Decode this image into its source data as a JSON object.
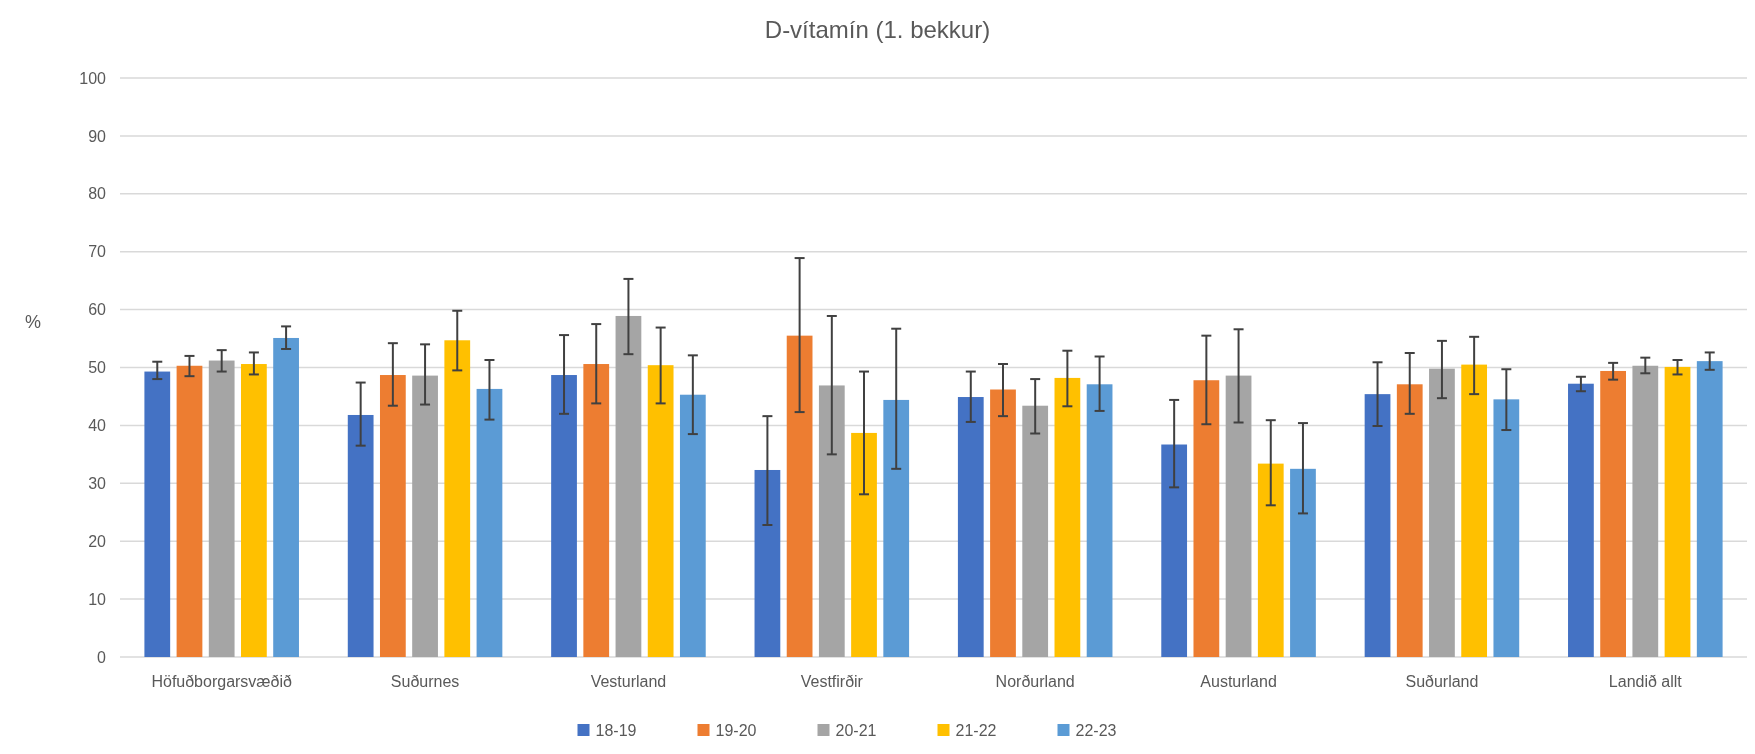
{
  "chart_data": {
    "type": "bar",
    "title": "D-vítamín (1. bekkur)",
    "ylabel": "%",
    "categories": [
      "Höfuðborgarsvæðið",
      "Suðurnes",
      "Vesturland",
      "Vestfirðir",
      "Norðurland",
      "Austurland",
      "Suðurland",
      "Landið allt"
    ],
    "series": [
      {
        "name": "18-19",
        "color": "#4472c4",
        "values": [
          49.3,
          41.8,
          48.7,
          32.3,
          44.9,
          36.7,
          45.4,
          47.2
        ],
        "errors": [
          [
            48,
            51
          ],
          [
            36.5,
            47.4
          ],
          [
            42,
            55.6
          ],
          [
            22.8,
            41.6
          ],
          [
            40.6,
            49.3
          ],
          [
            29.3,
            44.4
          ],
          [
            39.9,
            50.9
          ],
          [
            45.9,
            48.4
          ]
        ]
      },
      {
        "name": "19-20",
        "color": "#ed7d31",
        "values": [
          50.3,
          48.7,
          50.6,
          55.5,
          46.2,
          47.8,
          47.1,
          49.4
        ],
        "errors": [
          [
            48.5,
            52
          ],
          [
            43.4,
            54.2
          ],
          [
            43.8,
            57.5
          ],
          [
            42.3,
            68.9
          ],
          [
            41.6,
            50.6
          ],
          [
            40.2,
            55.5
          ],
          [
            42,
            52.5
          ],
          [
            47.9,
            50.8
          ]
        ]
      },
      {
        "name": "20-21",
        "color": "#a5a5a5",
        "values": [
          51.2,
          48.6,
          58.9,
          46.9,
          43.4,
          48.6,
          49.8,
          50.3
        ],
        "errors": [
          [
            49.3,
            53
          ],
          [
            43.6,
            54
          ],
          [
            52.3,
            65.3
          ],
          [
            35,
            58.9
          ],
          [
            38.6,
            48
          ],
          [
            40.5,
            56.6
          ],
          [
            44.7,
            54.6
          ],
          [
            49,
            51.7
          ]
        ]
      },
      {
        "name": "21-22",
        "color": "#ffc000",
        "values": [
          50.6,
          54.7,
          50.4,
          38.7,
          48.2,
          33.4,
          50.5,
          50.1
        ],
        "errors": [
          [
            48.8,
            52.6
          ],
          [
            49.5,
            59.8
          ],
          [
            43.8,
            56.9
          ],
          [
            28.1,
            49.3
          ],
          [
            43.3,
            52.9
          ],
          [
            26.2,
            40.9
          ],
          [
            45.4,
            55.3
          ],
          [
            48.8,
            51.3
          ]
        ]
      },
      {
        "name": "22-23",
        "color": "#5b9bd5",
        "values": [
          55.1,
          46.3,
          45.3,
          44.4,
          47.1,
          32.5,
          44.5,
          51.1
        ],
        "errors": [
          [
            53.2,
            57.1
          ],
          [
            41,
            51.3
          ],
          [
            38.5,
            52.1
          ],
          [
            32.5,
            56.7
          ],
          [
            42.5,
            51.9
          ],
          [
            24.8,
            40.4
          ],
          [
            39.2,
            49.7
          ],
          [
            49.6,
            52.6
          ]
        ]
      }
    ],
    "ylim": [
      0,
      100
    ],
    "yticks": [
      0,
      10,
      20,
      30,
      40,
      50,
      60,
      70,
      80,
      90,
      100
    ],
    "grid": "y",
    "legend": "bottom"
  }
}
